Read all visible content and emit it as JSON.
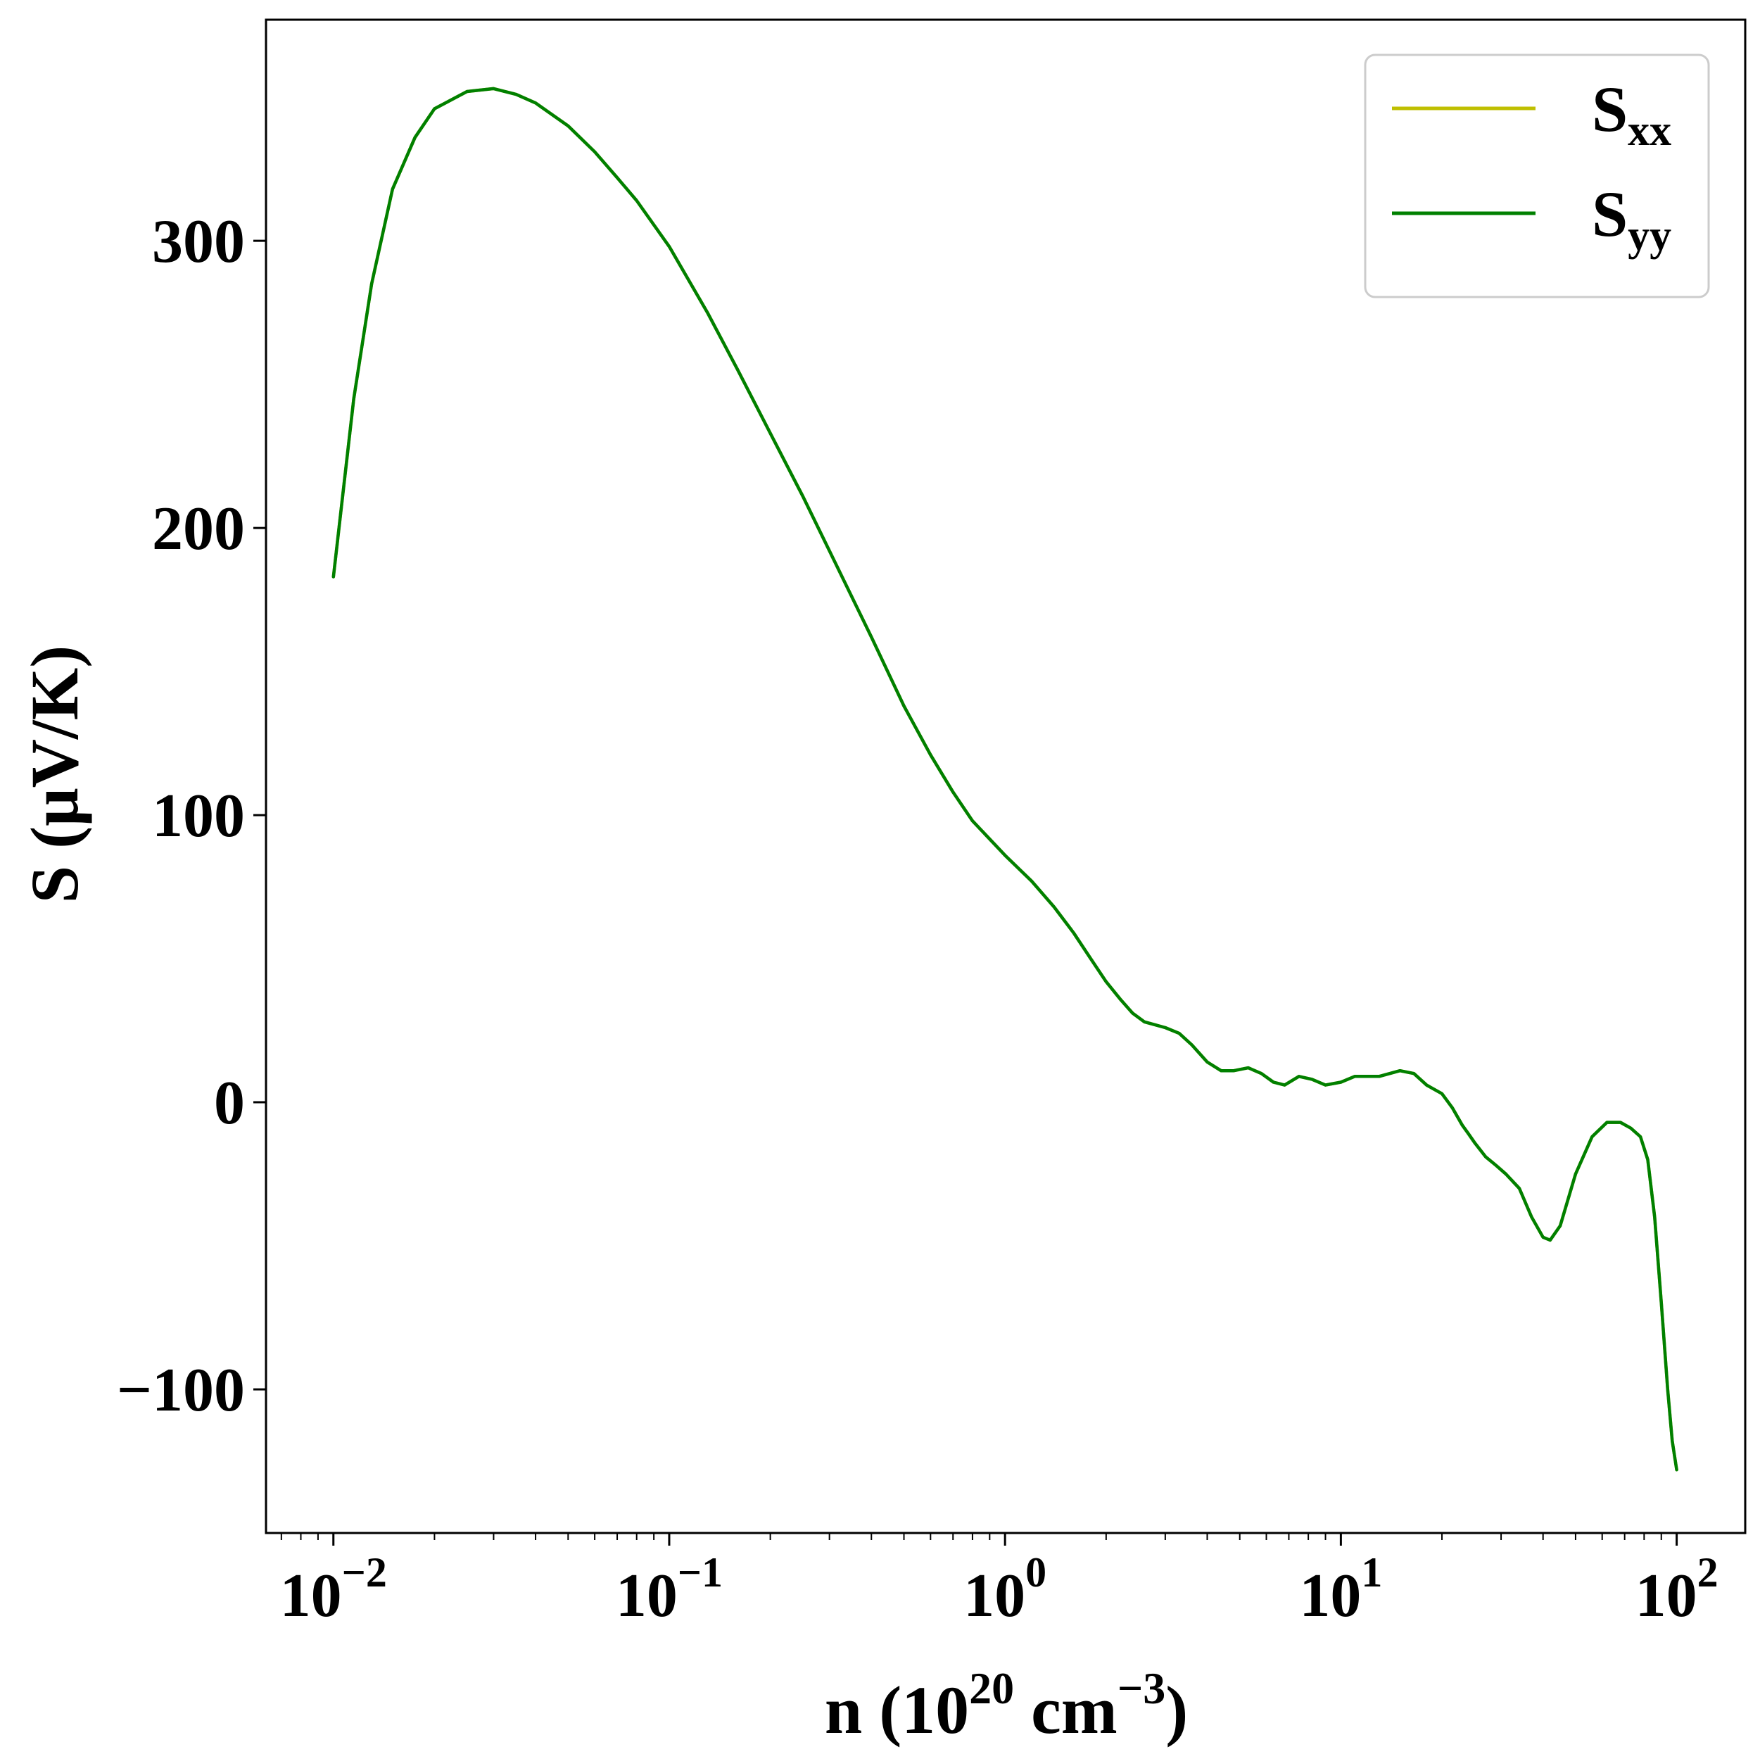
{
  "chart_data": {
    "type": "line",
    "xscale": "log",
    "xlim": [
      0.0063,
      160
    ],
    "ylim": [
      -150,
      377
    ],
    "xlabel": {
      "prefix": "n (10",
      "sup1": "20",
      "middle": " cm",
      "sup2": "−3",
      "suffix": ")"
    },
    "ylabel": "S (μV/K)",
    "x_ticks": [
      {
        "value": 0.01,
        "base": "10",
        "exp": "−2"
      },
      {
        "value": 0.1,
        "base": "10",
        "exp": "−1"
      },
      {
        "value": 1,
        "base": "10",
        "exp": "0"
      },
      {
        "value": 10,
        "base": "10",
        "exp": "1"
      },
      {
        "value": 100,
        "base": "10",
        "exp": "2"
      }
    ],
    "y_ticks": [
      {
        "value": -100,
        "label": "−100"
      },
      {
        "value": 0,
        "label": "0"
      },
      {
        "value": 100,
        "label": "100"
      },
      {
        "value": 200,
        "label": "200"
      },
      {
        "value": 300,
        "label": "300"
      }
    ],
    "legend": {
      "position": "top-right",
      "entries": [
        {
          "main": "S",
          "sub": "xx",
          "color": "#bfbf00"
        },
        {
          "main": "S",
          "sub": "yy",
          "color": "#008000"
        }
      ]
    },
    "series": [
      {
        "key": "Sxx",
        "color": "#bfbf00",
        "points": [
          [
            0.01,
            183
          ],
          [
            0.0115,
            245
          ],
          [
            0.013,
            285
          ],
          [
            0.015,
            318
          ],
          [
            0.0175,
            336
          ],
          [
            0.02,
            346
          ],
          [
            0.025,
            352
          ],
          [
            0.03,
            353
          ],
          [
            0.035,
            351
          ],
          [
            0.04,
            348
          ],
          [
            0.05,
            340
          ],
          [
            0.06,
            331
          ],
          [
            0.07,
            322
          ],
          [
            0.08,
            314
          ],
          [
            0.1,
            298
          ],
          [
            0.13,
            275
          ],
          [
            0.16,
            255
          ],
          [
            0.2,
            233
          ],
          [
            0.25,
            211
          ],
          [
            0.3,
            192
          ],
          [
            0.4,
            162
          ],
          [
            0.5,
            138
          ],
          [
            0.6,
            121
          ],
          [
            0.7,
            108
          ],
          [
            0.8,
            98
          ],
          [
            1.0,
            86
          ],
          [
            1.2,
            77
          ],
          [
            1.4,
            68
          ],
          [
            1.6,
            59
          ],
          [
            1.8,
            50
          ],
          [
            2.0,
            42
          ],
          [
            2.2,
            36
          ],
          [
            2.4,
            31
          ],
          [
            2.6,
            28
          ],
          [
            3.0,
            26
          ],
          [
            3.3,
            24
          ],
          [
            3.6,
            20
          ],
          [
            4.0,
            14
          ],
          [
            4.4,
            11
          ],
          [
            4.8,
            11
          ],
          [
            5.3,
            12
          ],
          [
            5.8,
            10
          ],
          [
            6.3,
            7
          ],
          [
            6.8,
            6
          ],
          [
            7.5,
            9
          ],
          [
            8.2,
            8
          ],
          [
            9.0,
            6
          ],
          [
            10.0,
            7
          ],
          [
            11.0,
            9
          ],
          [
            12.0,
            9
          ],
          [
            13.0,
            9
          ],
          [
            15.0,
            11
          ],
          [
            16.5,
            10
          ],
          [
            18.0,
            6
          ],
          [
            20.0,
            3
          ],
          [
            21.5,
            -2
          ],
          [
            23.0,
            -8
          ],
          [
            24.0,
            -11
          ],
          [
            25.0,
            -14
          ],
          [
            27.0,
            -19
          ],
          [
            29.0,
            -22
          ],
          [
            31.0,
            -25
          ],
          [
            34.0,
            -30
          ],
          [
            37.0,
            -40
          ],
          [
            40.0,
            -47
          ],
          [
            42.0,
            -48
          ],
          [
            45.0,
            -43
          ],
          [
            50.0,
            -25
          ],
          [
            56.0,
            -12
          ],
          [
            62.0,
            -7
          ],
          [
            68.0,
            -7
          ],
          [
            73.0,
            -9
          ],
          [
            78.0,
            -12
          ],
          [
            82.0,
            -20
          ],
          [
            86.0,
            -40
          ],
          [
            90.0,
            -70
          ],
          [
            94.0,
            -100
          ],
          [
            97.0,
            -118
          ],
          [
            100.0,
            -128
          ]
        ]
      },
      {
        "key": "Syy",
        "color": "#008000",
        "points": [
          [
            0.01,
            183
          ],
          [
            0.0115,
            245
          ],
          [
            0.013,
            285
          ],
          [
            0.015,
            318
          ],
          [
            0.0175,
            336
          ],
          [
            0.02,
            346
          ],
          [
            0.025,
            352
          ],
          [
            0.03,
            353
          ],
          [
            0.035,
            351
          ],
          [
            0.04,
            348
          ],
          [
            0.05,
            340
          ],
          [
            0.06,
            331
          ],
          [
            0.07,
            322
          ],
          [
            0.08,
            314
          ],
          [
            0.1,
            298
          ],
          [
            0.13,
            275
          ],
          [
            0.16,
            255
          ],
          [
            0.2,
            233
          ],
          [
            0.25,
            211
          ],
          [
            0.3,
            192
          ],
          [
            0.4,
            162
          ],
          [
            0.5,
            138
          ],
          [
            0.6,
            121
          ],
          [
            0.7,
            108
          ],
          [
            0.8,
            98
          ],
          [
            1.0,
            86
          ],
          [
            1.2,
            77
          ],
          [
            1.4,
            68
          ],
          [
            1.6,
            59
          ],
          [
            1.8,
            50
          ],
          [
            2.0,
            42
          ],
          [
            2.2,
            36
          ],
          [
            2.4,
            31
          ],
          [
            2.6,
            28
          ],
          [
            3.0,
            26
          ],
          [
            3.3,
            24
          ],
          [
            3.6,
            20
          ],
          [
            4.0,
            14
          ],
          [
            4.4,
            11
          ],
          [
            4.8,
            11
          ],
          [
            5.3,
            12
          ],
          [
            5.8,
            10
          ],
          [
            6.3,
            7
          ],
          [
            6.8,
            6
          ],
          [
            7.5,
            9
          ],
          [
            8.2,
            8
          ],
          [
            9.0,
            6
          ],
          [
            10.0,
            7
          ],
          [
            11.0,
            9
          ],
          [
            12.0,
            9
          ],
          [
            13.0,
            9
          ],
          [
            15.0,
            11
          ],
          [
            16.5,
            10
          ],
          [
            18.0,
            6
          ],
          [
            20.0,
            3
          ],
          [
            21.5,
            -2
          ],
          [
            23.0,
            -8
          ],
          [
            24.0,
            -11
          ],
          [
            25.0,
            -14
          ],
          [
            27.0,
            -19
          ],
          [
            29.0,
            -22
          ],
          [
            31.0,
            -25
          ],
          [
            34.0,
            -30
          ],
          [
            37.0,
            -40
          ],
          [
            40.0,
            -47
          ],
          [
            42.0,
            -48
          ],
          [
            45.0,
            -43
          ],
          [
            50.0,
            -25
          ],
          [
            56.0,
            -12
          ],
          [
            62.0,
            -7
          ],
          [
            68.0,
            -7
          ],
          [
            73.0,
            -9
          ],
          [
            78.0,
            -12
          ],
          [
            82.0,
            -20
          ],
          [
            86.0,
            -40
          ],
          [
            90.0,
            -70
          ],
          [
            94.0,
            -100
          ],
          [
            97.0,
            -118
          ],
          [
            100.0,
            -128
          ]
        ]
      }
    ]
  }
}
